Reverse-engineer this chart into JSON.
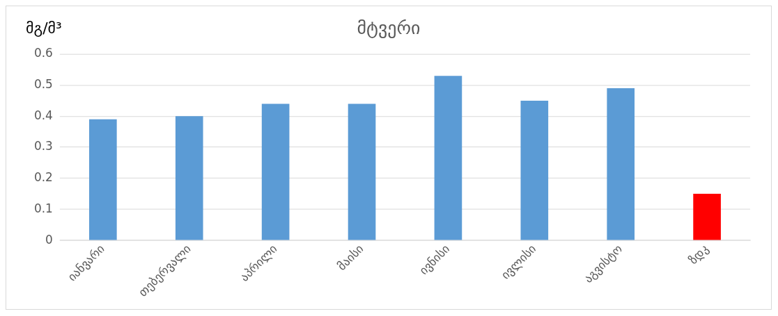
{
  "chart_data": {
    "type": "bar",
    "title": "მტვერი",
    "ylabel": "მგ/მ³",
    "categories": [
      "იანვარი",
      "თებერვალი",
      "აპრილი",
      "მაისი",
      "ივნისი",
      "ივლისი",
      "აგვისტო",
      "ზდკ"
    ],
    "values": [
      0.39,
      0.4,
      0.44,
      0.44,
      0.53,
      0.45,
      0.49,
      0.15
    ],
    "colors": [
      "#5b9bd5",
      "#5b9bd5",
      "#5b9bd5",
      "#5b9bd5",
      "#5b9bd5",
      "#5b9bd5",
      "#5b9bd5",
      "#ff0000"
    ],
    "ylim": [
      0,
      0.6
    ],
    "yticks": [
      0,
      0.1,
      0.2,
      0.3,
      0.4,
      0.5,
      0.6
    ],
    "grid": "y",
    "legend": false
  }
}
